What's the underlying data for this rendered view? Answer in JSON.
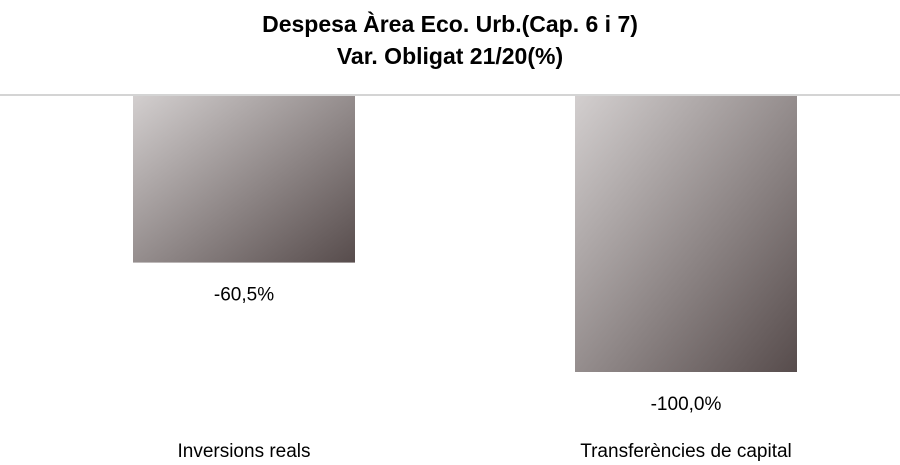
{
  "chart_data": {
    "type": "bar",
    "title": [
      "Despesa Àrea Eco. Urb.(Cap. 6 i 7)",
      "Var. Obligat 21/20(%)"
    ],
    "categories": [
      "Inversions reals",
      "Transferències de capital"
    ],
    "values": [
      -60.5,
      -100
    ],
    "value_labels": [
      "-60,5%",
      "-100,0%"
    ],
    "ylim": [
      -100,
      0
    ]
  }
}
